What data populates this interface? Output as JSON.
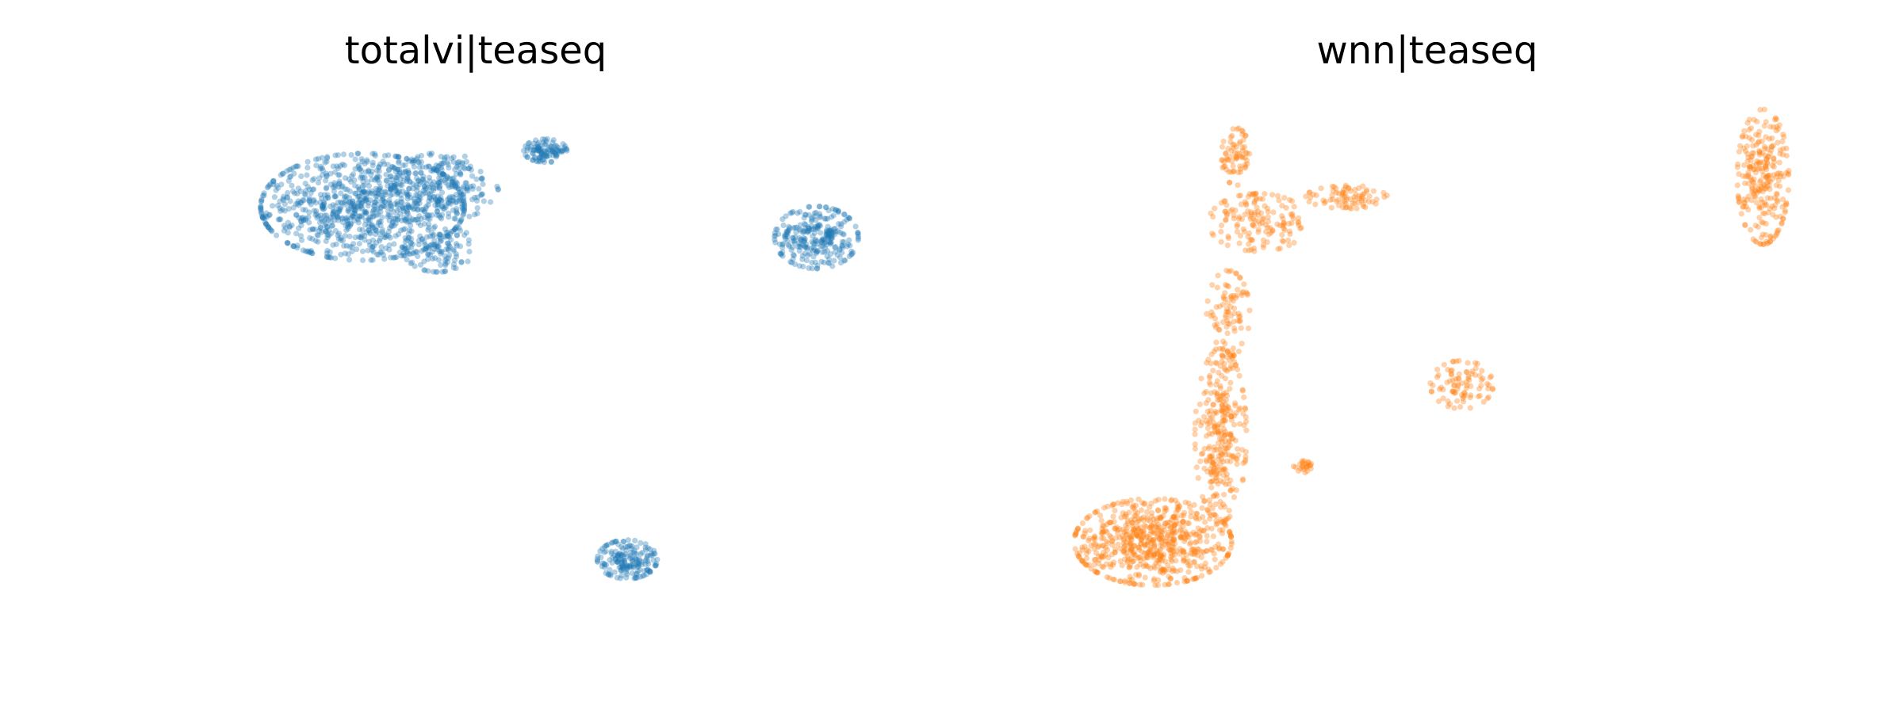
{
  "chart_data": [
    {
      "type": "scatter",
      "title": "totalvi|teaseq",
      "color": "#1f77b4",
      "axes": "off",
      "grid": false,
      "xlim": [
        0,
        10
      ],
      "ylim": [
        0,
        10
      ],
      "clusters": [
        {
          "cx": 1.6,
          "cy": 8.2,
          "sx": 0.85,
          "sy": 0.55,
          "n": 900
        },
        {
          "cx": 2.9,
          "cy": 8.6,
          "sx": 0.45,
          "sy": 0.35,
          "n": 220
        },
        {
          "cx": 2.8,
          "cy": 7.4,
          "sx": 0.3,
          "sy": 0.25,
          "n": 120
        },
        {
          "cx": 4.5,
          "cy": 9.3,
          "sx": 0.18,
          "sy": 0.12,
          "n": 110
        },
        {
          "cx": 8.8,
          "cy": 7.6,
          "sx": 0.35,
          "sy": 0.32,
          "n": 280
        },
        {
          "cx": 5.8,
          "cy": 1.3,
          "sx": 0.25,
          "sy": 0.2,
          "n": 180
        }
      ]
    },
    {
      "type": "scatter",
      "title": "wnn|teaseq",
      "color": "#ff7f0e",
      "axes": "off",
      "grid": false,
      "xlim": [
        0,
        10
      ],
      "ylim": [
        0,
        10
      ],
      "clusters": [
        {
          "cx": 1.2,
          "cy": 1.5,
          "sx": 0.55,
          "sy": 0.45,
          "n": 650
        },
        {
          "cx": 2.1,
          "cy": 3.6,
          "sx": 0.18,
          "sy": 0.9,
          "n": 300
        },
        {
          "cx": 2.2,
          "cy": 6.0,
          "sx": 0.15,
          "sy": 0.45,
          "n": 90
        },
        {
          "cx": 2.6,
          "cy": 7.8,
          "sx": 0.35,
          "sy": 0.3,
          "n": 150
        },
        {
          "cx": 2.3,
          "cy": 9.1,
          "sx": 0.1,
          "sy": 0.3,
          "n": 70
        },
        {
          "cx": 3.8,
          "cy": 8.3,
          "sx": 0.3,
          "sy": 0.12,
          "n": 80
        },
        {
          "cx": 3.2,
          "cy": 3.0,
          "sx": 0.07,
          "sy": 0.07,
          "n": 25
        },
        {
          "cx": 5.3,
          "cy": 4.6,
          "sx": 0.22,
          "sy": 0.25,
          "n": 90
        },
        {
          "cx": 9.3,
          "cy": 8.7,
          "sx": 0.18,
          "sy": 0.7,
          "n": 260
        }
      ]
    }
  ]
}
